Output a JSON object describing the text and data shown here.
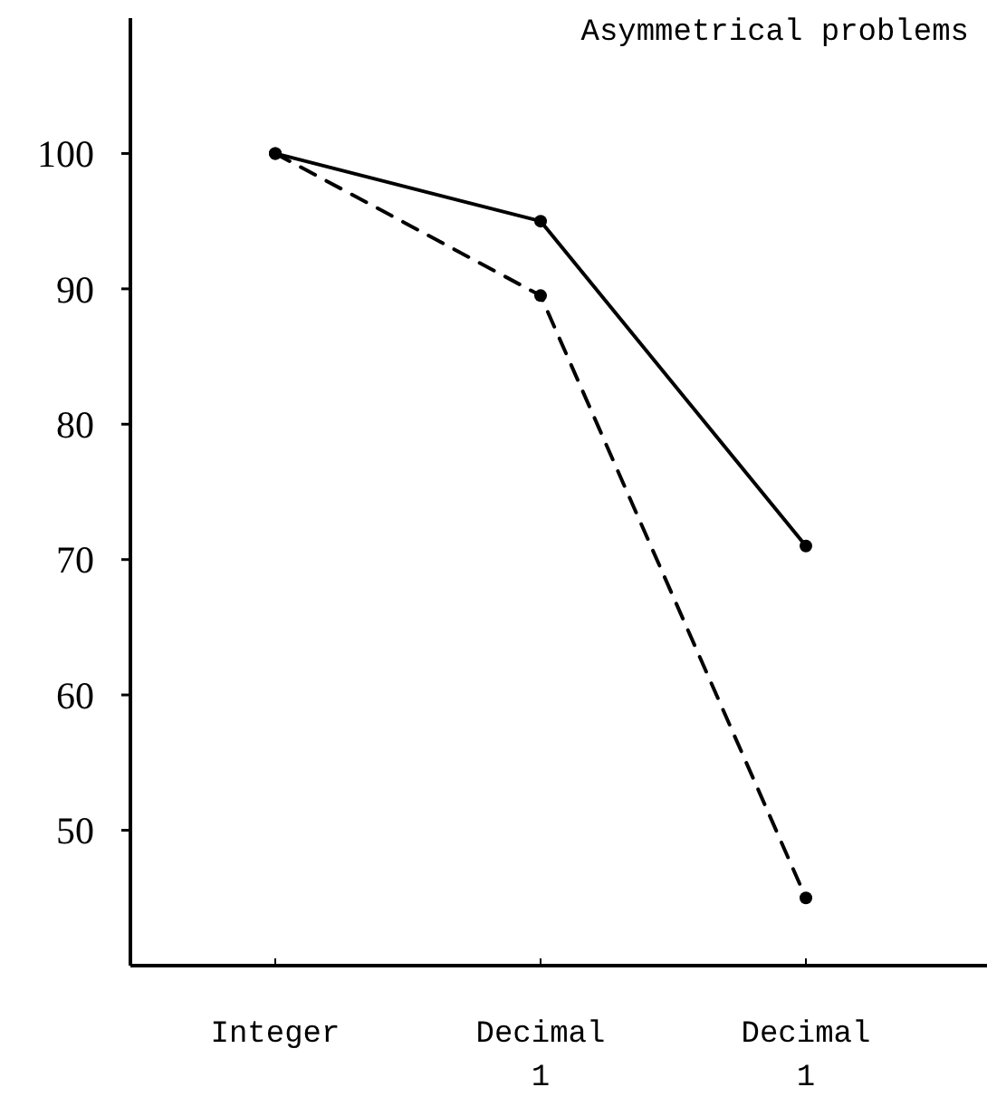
{
  "chart_data": {
    "type": "line",
    "title": "Asymmetrical problems",
    "categories": [
      "Integer",
      "Decimal\n1",
      "Decimal\n1"
    ],
    "series": [
      {
        "color": "#000000",
        "values": [
          100,
          95,
          71
        ],
        "line_style": "solid"
      },
      {
        "color": "#000000",
        "values": [
          100,
          89.5,
          45
        ],
        "line_style": "dashed"
      }
    ],
    "ylim": [
      40,
      110
    ],
    "yticks": [
      50,
      60,
      70,
      80,
      90,
      100
    ],
    "marker": "circle"
  }
}
